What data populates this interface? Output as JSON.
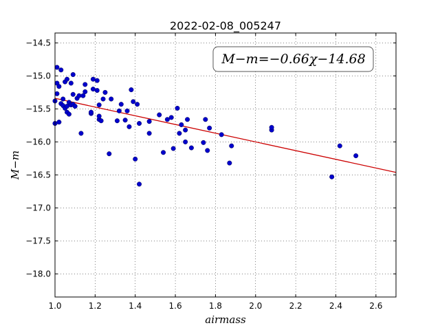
{
  "chart_data": {
    "type": "scatter",
    "title": "2022-02-08_005247",
    "xlabel": "airmass",
    "ylabel": "M−m",
    "xlim": [
      1.0,
      2.7
    ],
    "ylim": [
      -18.35,
      -14.35
    ],
    "x_ticks": [
      1.0,
      1.2,
      1.4,
      1.6,
      1.8,
      2.0,
      2.2,
      2.4,
      2.6
    ],
    "x_tick_labels": [
      "1.0",
      "1.2",
      "1.4",
      "1.6",
      "1.8",
      "2.0",
      "2.2",
      "2.4",
      "2.6"
    ],
    "y_ticks": [
      -14.5,
      -15.0,
      -15.5,
      -16.0,
      -16.5,
      -17.0,
      -17.5,
      -18.0
    ],
    "y_tick_labels": [
      "−14.5",
      "−15.0",
      "−15.5",
      "−16.0",
      "−16.5",
      "−17.0",
      "−17.5",
      "−18.0"
    ],
    "grid": true,
    "annotation": "M−m=−0.66χ−14.68",
    "fit_line": {
      "slope": -0.66,
      "intercept": -14.68,
      "color": "#cc0000"
    },
    "marker_color": "#0000cc",
    "points": [
      [
        1.0,
        -15.72
      ],
      [
        1.0,
        -15.38
      ],
      [
        1.01,
        -15.27
      ],
      [
        1.01,
        -15.11
      ],
      [
        1.01,
        -14.87
      ],
      [
        1.02,
        -15.7
      ],
      [
        1.02,
        -15.16
      ],
      [
        1.03,
        -15.42
      ],
      [
        1.03,
        -14.91
      ],
      [
        1.04,
        -15.45
      ],
      [
        1.04,
        -15.35
      ],
      [
        1.05,
        -15.49
      ],
      [
        1.05,
        -15.09
      ],
      [
        1.06,
        -15.55
      ],
      [
        1.06,
        -15.46
      ],
      [
        1.06,
        -15.05
      ],
      [
        1.07,
        -15.58
      ],
      [
        1.07,
        -15.4
      ],
      [
        1.08,
        -15.44
      ],
      [
        1.08,
        -15.11
      ],
      [
        1.09,
        -15.43
      ],
      [
        1.09,
        -15.28
      ],
      [
        1.09,
        -14.98
      ],
      [
        1.1,
        -15.46
      ],
      [
        1.11,
        -15.34
      ],
      [
        1.12,
        -15.3
      ],
      [
        1.13,
        -15.87
      ],
      [
        1.14,
        -15.3
      ],
      [
        1.15,
        -15.24
      ],
      [
        1.15,
        -15.13
      ],
      [
        1.18,
        -15.57
      ],
      [
        1.18,
        -15.55
      ],
      [
        1.19,
        -15.2
      ],
      [
        1.19,
        -15.05
      ],
      [
        1.21,
        -15.22
      ],
      [
        1.21,
        -15.07
      ],
      [
        1.22,
        -15.66
      ],
      [
        1.22,
        -15.61
      ],
      [
        1.22,
        -15.44
      ],
      [
        1.23,
        -15.68
      ],
      [
        1.24,
        -15.35
      ],
      [
        1.25,
        -15.25
      ],
      [
        1.27,
        -16.18
      ],
      [
        1.28,
        -15.35
      ],
      [
        1.31,
        -15.68
      ],
      [
        1.32,
        -15.53
      ],
      [
        1.33,
        -15.43
      ],
      [
        1.35,
        -15.67
      ],
      [
        1.36,
        -15.53
      ],
      [
        1.37,
        -15.77
      ],
      [
        1.38,
        -15.21
      ],
      [
        1.39,
        -15.39
      ],
      [
        1.4,
        -16.26
      ],
      [
        1.41,
        -15.43
      ],
      [
        1.42,
        -15.72
      ],
      [
        1.42,
        -16.64
      ],
      [
        1.47,
        -15.87
      ],
      [
        1.47,
        -15.69
      ],
      [
        1.52,
        -15.59
      ],
      [
        1.54,
        -16.16
      ],
      [
        1.56,
        -15.66
      ],
      [
        1.58,
        -15.63
      ],
      [
        1.59,
        -16.1
      ],
      [
        1.61,
        -15.49
      ],
      [
        1.62,
        -15.87
      ],
      [
        1.63,
        -15.74
      ],
      [
        1.65,
        -15.82
      ],
      [
        1.65,
        -16.0
      ],
      [
        1.66,
        -15.66
      ],
      [
        1.68,
        -16.09
      ],
      [
        1.74,
        -16.01
      ],
      [
        1.75,
        -15.66
      ],
      [
        1.76,
        -16.13
      ],
      [
        1.77,
        -15.79
      ],
      [
        1.83,
        -15.89
      ],
      [
        1.87,
        -16.32
      ],
      [
        1.88,
        -16.06
      ],
      [
        2.08,
        -15.82
      ],
      [
        2.08,
        -15.78
      ],
      [
        2.38,
        -16.53
      ],
      [
        2.42,
        -16.06
      ],
      [
        2.5,
        -16.21
      ]
    ]
  }
}
